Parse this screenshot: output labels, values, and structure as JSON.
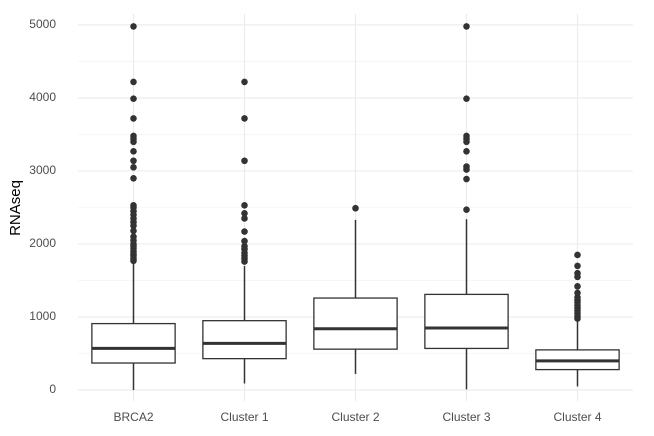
{
  "chart_data": {
    "type": "box",
    "y_label": "RNAseq",
    "categories": [
      "BRCA2",
      "Cluster 1",
      "Cluster 2",
      "Cluster 3",
      "Cluster 4"
    ],
    "boxes": [
      {
        "low": 0,
        "q1": 370,
        "median": 570,
        "q3": 910,
        "high": 1750,
        "outliers": [
          4980,
          4220,
          3990,
          3720,
          3480,
          3440,
          3400,
          3270,
          3140,
          3050,
          2900,
          2530,
          2500,
          2450,
          2400,
          2350,
          2300,
          2250,
          2180,
          2100,
          2050,
          2000,
          1970,
          1940,
          1900,
          1870,
          1840,
          1800,
          1770
        ]
      },
      {
        "low": 90,
        "q1": 430,
        "median": 640,
        "q3": 950,
        "high": 1700,
        "outliers": [
          4220,
          3720,
          3140,
          2530,
          2420,
          2350,
          2170,
          2040,
          1970,
          1930,
          1880,
          1840,
          1800,
          1760
        ]
      },
      {
        "low": 220,
        "q1": 560,
        "median": 840,
        "q3": 1260,
        "high": 2330,
        "outliers": [
          2490
        ]
      },
      {
        "low": 10,
        "q1": 570,
        "median": 850,
        "q3": 1310,
        "high": 2340,
        "outliers": [
          4980,
          3990,
          3480,
          3440,
          3400,
          3270,
          3060,
          3020,
          2890,
          2470
        ]
      },
      {
        "low": 50,
        "q1": 280,
        "median": 400,
        "q3": 550,
        "high": 940,
        "outliers": [
          1850,
          1700,
          1600,
          1550,
          1420,
          1330,
          1270,
          1230,
          1200,
          1160,
          1120,
          1090,
          1050,
          1010,
          980
        ]
      }
    ],
    "box_fill": "#ffffff",
    "line_color": "#333333",
    "ylim": [
      -150,
      5150
    ],
    "yticks": [
      0,
      1000,
      2000,
      3000,
      4000,
      5000
    ],
    "grid": true
  }
}
